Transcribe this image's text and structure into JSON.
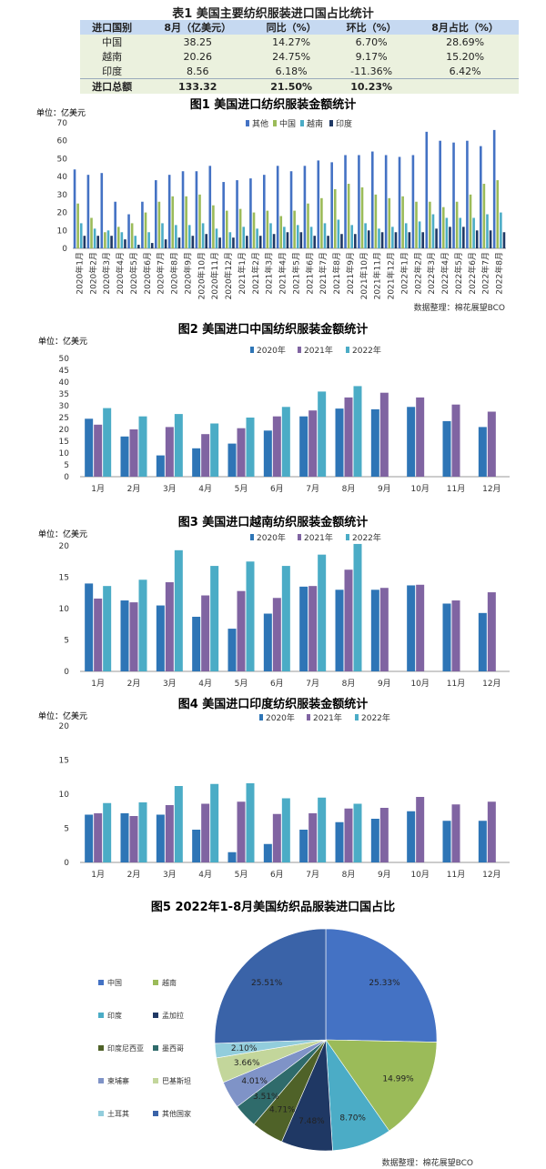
{
  "table": {
    "title": "表1  美国主要纺织服装进口国占比统计",
    "headers": [
      "进口国别",
      "8月（亿美元）",
      "同比（%）",
      "环比（%）",
      "8月占比（%）"
    ],
    "rows": [
      [
        "中国",
        "38.25",
        "14.27%",
        "6.70%",
        "28.69%"
      ],
      [
        "越南",
        "20.26",
        "24.75%",
        "9.17%",
        "15.20%"
      ],
      [
        "印度",
        "8.56",
        "6.18%",
        "-11.36%",
        "6.42%"
      ],
      [
        "进口总额",
        "133.32",
        "21.50%",
        "10.23%",
        ""
      ]
    ]
  },
  "chart_data": [
    {
      "type": "bar",
      "title": "图1  美国进口纺织服装金额统计",
      "ylabel": "单位：亿美元",
      "ylim": [
        0,
        70
      ],
      "yticks": [
        0,
        10,
        20,
        30,
        40,
        50,
        60,
        70
      ],
      "source": "数据整理：棉花展望BCO",
      "categories": [
        "2020年1月",
        "2020年2月",
        "2020年3月",
        "2020年4月",
        "2020年5月",
        "2020年6月",
        "2020年7月",
        "2020年8月",
        "2020年9月",
        "2020年10月",
        "2020年11月",
        "2020年12月",
        "2021年1月",
        "2021年2月",
        "2021年3月",
        "2021年4月",
        "2021年5月",
        "2021年6月",
        "2021年7月",
        "2021年8月",
        "2021年9月",
        "2021年10月",
        "2021年11月",
        "2021年12月",
        "2022年1月",
        "2022年2月",
        "2022年3月",
        "2022年4月",
        "2022年5月",
        "2022年6月",
        "2022年7月",
        "2022年8月"
      ],
      "series": [
        {
          "name": "其他",
          "color": "#4472c4",
          "values": [
            44,
            41,
            42,
            26,
            19,
            26,
            38,
            41,
            43,
            43,
            46,
            37,
            38,
            39,
            41,
            46,
            43,
            46,
            49,
            48,
            52,
            52,
            54,
            52,
            51,
            52,
            65,
            60,
            59,
            60,
            57,
            66
          ]
        },
        {
          "name": "中国",
          "color": "#9bbb59",
          "values": [
            25,
            17,
            9,
            12,
            14,
            20,
            26,
            29,
            29,
            30,
            24,
            21,
            22,
            20,
            21,
            18,
            21,
            25,
            28,
            33,
            36,
            34,
            30,
            28,
            29,
            26,
            26,
            23,
            26,
            30,
            36,
            38
          ]
        },
        {
          "name": "越南",
          "color": "#4bacc6",
          "values": [
            14,
            11,
            10,
            9,
            7,
            9,
            14,
            13,
            13,
            14,
            11,
            9,
            12,
            11,
            14,
            12,
            13,
            12,
            14,
            16,
            13,
            14,
            11,
            12,
            14,
            15,
            19,
            17,
            17,
            17,
            19,
            20
          ]
        },
        {
          "name": "印度",
          "color": "#1f3864",
          "values": [
            7,
            7,
            7,
            5,
            2,
            3,
            5,
            6,
            7,
            8,
            6,
            6,
            7,
            7,
            8,
            9,
            9,
            7,
            7,
            8,
            8,
            10,
            9,
            9,
            9,
            9,
            11,
            12,
            12,
            10,
            10,
            9
          ]
        }
      ]
    },
    {
      "type": "bar",
      "title": "图2  美国进口中国纺织服装金额统计",
      "ylabel": "单位：亿美元",
      "ylim": [
        0,
        50
      ],
      "yticks": [
        0,
        5,
        10,
        15,
        20,
        25,
        30,
        35,
        40,
        45,
        50
      ],
      "categories": [
        "1月",
        "2月",
        "3月",
        "4月",
        "5月",
        "6月",
        "7月",
        "8月",
        "9月",
        "10月",
        "11月",
        "12月"
      ],
      "series": [
        {
          "name": "2020年",
          "color": "#2e75b6",
          "values": [
            24.5,
            17,
            9,
            12,
            14,
            19.5,
            25.5,
            28.8,
            28.5,
            29.5,
            23.5,
            21
          ]
        },
        {
          "name": "2021年",
          "color": "#8064a2",
          "values": [
            22,
            20,
            21,
            18,
            20.5,
            25.5,
            28,
            33.5,
            35.5,
            33.5,
            30.5,
            27.5
          ]
        },
        {
          "name": "2022年",
          "color": "#4bacc6",
          "values": [
            29,
            25.5,
            26.5,
            22.5,
            25,
            29.5,
            36,
            38.3,
            null,
            null,
            null,
            null
          ]
        }
      ]
    },
    {
      "type": "bar",
      "title": "图3  美国进口越南纺织服装金额统计",
      "ylabel": "单位：亿美元",
      "ylim": [
        0,
        20
      ],
      "yticks": [
        0,
        5,
        10,
        15,
        20
      ],
      "categories": [
        "1月",
        "2月",
        "3月",
        "4月",
        "5月",
        "6月",
        "7月",
        "8月",
        "9月",
        "10月",
        "11月",
        "12月"
      ],
      "series": [
        {
          "name": "2020年",
          "color": "#2e75b6",
          "values": [
            14,
            11.3,
            10.5,
            8.7,
            6.8,
            9.2,
            13.5,
            13,
            13,
            13.7,
            10.8,
            9.3
          ]
        },
        {
          "name": "2021年",
          "color": "#8064a2",
          "values": [
            11.6,
            11,
            14.2,
            12.1,
            12.8,
            11.7,
            13.6,
            16.2,
            13.3,
            13.8,
            11.3,
            12.6
          ]
        },
        {
          "name": "2022年",
          "color": "#4bacc6",
          "values": [
            13.6,
            14.6,
            19.3,
            16.8,
            17.5,
            16.8,
            18.6,
            20.3,
            null,
            null,
            null,
            null
          ]
        }
      ]
    },
    {
      "type": "bar",
      "title": "图4  美国进口印度纺织服装金额统计",
      "ylabel": "单位：亿美元",
      "ylim": [
        0,
        20
      ],
      "yticks": [
        0,
        5,
        10,
        15,
        20
      ],
      "categories": [
        "1月",
        "2月",
        "3月",
        "4月",
        "5月",
        "6月",
        "7月",
        "8月",
        "9月",
        "10月",
        "11月",
        "12月"
      ],
      "series": [
        {
          "name": "2020年",
          "color": "#2e75b6",
          "values": [
            7,
            7.2,
            7,
            4.8,
            1.5,
            2.7,
            4.8,
            5.9,
            6.4,
            7.5,
            6.1,
            6.1
          ]
        },
        {
          "name": "2021年",
          "color": "#8064a2",
          "values": [
            7.2,
            6.8,
            8.4,
            8.6,
            8.9,
            7.1,
            7.2,
            7.9,
            8,
            9.6,
            8.5,
            8.9
          ]
        },
        {
          "name": "2022年",
          "color": "#4bacc6",
          "values": [
            8.7,
            8.8,
            11.2,
            11.5,
            11.6,
            9.4,
            9.5,
            8.6,
            null,
            null,
            null,
            null
          ]
        }
      ]
    },
    {
      "type": "pie",
      "title": "图5  2022年1-8月美国纺织品服装进口国占比",
      "source": "数据整理：棉花展望BCO",
      "slices": [
        {
          "label": "中国",
          "value": 25.33,
          "text": "25.33%",
          "color": "#4472c4"
        },
        {
          "label": "越南",
          "value": 14.99,
          "text": "14.99%",
          "color": "#9bbb59"
        },
        {
          "label": "印度",
          "value": 8.7,
          "text": "8.70%",
          "color": "#4bacc6"
        },
        {
          "label": "孟加拉",
          "value": 7.48,
          "text": "7.48%",
          "color": "#1f3864"
        },
        {
          "label": "印度尼西亚",
          "value": 4.71,
          "text": "4.71%",
          "color": "#4f6228"
        },
        {
          "label": "墨西哥",
          "value": 3.51,
          "text": "3.51%",
          "color": "#2f6b6b"
        },
        {
          "label": "柬埔寨",
          "value": 4.01,
          "text": "4.01%",
          "color": "#7f93c7"
        },
        {
          "label": "巴基斯坦",
          "value": 3.66,
          "text": "3.66%",
          "color": "#c3d69b"
        },
        {
          "label": "土耳其",
          "value": 2.1,
          "text": "2.10%",
          "color": "#92cddc"
        },
        {
          "label": "其他国家",
          "value": 25.51,
          "text": "25.51%",
          "color": "#3a63a8"
        }
      ]
    }
  ]
}
